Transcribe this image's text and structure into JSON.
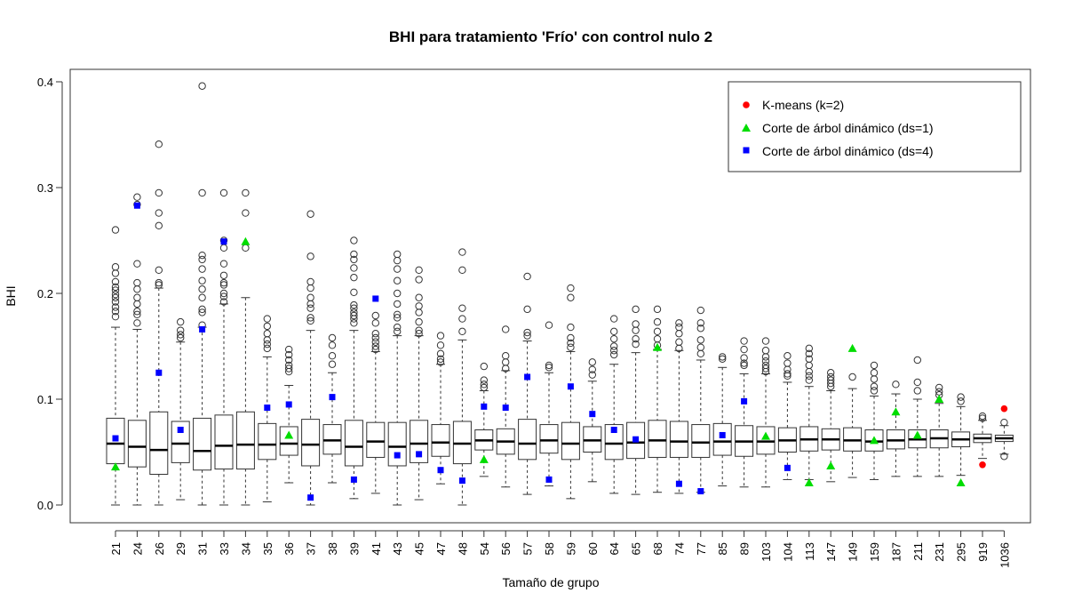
{
  "chart_data": {
    "type": "boxplot",
    "title": "BHI para tratamiento 'Frío' con control nulo 2",
    "xlabel": "Tamaño de grupo",
    "ylabel": "BHI",
    "ylim": [
      -0.02,
      0.41
    ],
    "yticks": [
      "0.0",
      "0.1",
      "0.2",
      "0.3",
      "0.4"
    ],
    "ytick_values": [
      0.0,
      0.1,
      0.2,
      0.3,
      0.4
    ],
    "categories": [
      "21",
      "24",
      "26",
      "29",
      "31",
      "33",
      "34",
      "35",
      "36",
      "37",
      "38",
      "39",
      "41",
      "43",
      "45",
      "47",
      "48",
      "54",
      "56",
      "57",
      "58",
      "59",
      "60",
      "64",
      "65",
      "68",
      "74",
      "77",
      "85",
      "89",
      "103",
      "104",
      "113",
      "147",
      "149",
      "159",
      "187",
      "211",
      "231",
      "295",
      "919",
      "1036"
    ],
    "boxes": [
      {
        "min": 0.0,
        "q1": 0.039,
        "median": 0.058,
        "q3": 0.082,
        "max": 0.168,
        "outliers": [
          0.178,
          0.183,
          0.187,
          0.192,
          0.196,
          0.199,
          0.203,
          0.206,
          0.211,
          0.219,
          0.225,
          0.26
        ]
      },
      {
        "min": 0.0,
        "q1": 0.036,
        "median": 0.055,
        "q3": 0.08,
        "max": 0.166,
        "outliers": [
          0.172,
          0.18,
          0.183,
          0.19,
          0.196,
          0.204,
          0.21,
          0.228,
          0.284,
          0.291
        ]
      },
      {
        "min": 0.0,
        "q1": 0.029,
        "median": 0.052,
        "q3": 0.088,
        "max": 0.205,
        "outliers": [
          0.208,
          0.21,
          0.222,
          0.264,
          0.276,
          0.295,
          0.341
        ]
      },
      {
        "min": 0.005,
        "q1": 0.04,
        "median": 0.058,
        "q3": 0.079,
        "max": 0.154,
        "outliers": [
          0.158,
          0.161,
          0.165,
          0.173
        ]
      },
      {
        "min": 0.0,
        "q1": 0.033,
        "median": 0.051,
        "q3": 0.082,
        "max": 0.168,
        "outliers": [
          0.17,
          0.182,
          0.185,
          0.196,
          0.204,
          0.212,
          0.223,
          0.232,
          0.236,
          0.295,
          0.396
        ]
      },
      {
        "min": 0.0,
        "q1": 0.034,
        "median": 0.056,
        "q3": 0.085,
        "max": 0.19,
        "outliers": [
          0.192,
          0.197,
          0.2,
          0.208,
          0.21,
          0.217,
          0.228,
          0.243,
          0.25,
          0.295
        ]
      },
      {
        "min": 0.0,
        "q1": 0.034,
        "median": 0.057,
        "q3": 0.088,
        "max": 0.196,
        "outliers": [
          0.243,
          0.276,
          0.295
        ]
      },
      {
        "min": 0.003,
        "q1": 0.043,
        "median": 0.057,
        "q3": 0.077,
        "max": 0.14,
        "outliers": [
          0.148,
          0.152,
          0.156,
          0.162,
          0.169,
          0.176
        ]
      },
      {
        "min": 0.021,
        "q1": 0.047,
        "median": 0.058,
        "q3": 0.074,
        "max": 0.113,
        "outliers": [
          0.126,
          0.129,
          0.132,
          0.137,
          0.142,
          0.147
        ]
      },
      {
        "min": 0.0,
        "q1": 0.037,
        "median": 0.057,
        "q3": 0.081,
        "max": 0.165,
        "outliers": [
          0.174,
          0.177,
          0.186,
          0.19,
          0.196,
          0.205,
          0.211,
          0.235,
          0.275
        ]
      },
      {
        "min": 0.021,
        "q1": 0.048,
        "median": 0.061,
        "q3": 0.076,
        "max": 0.125,
        "outliers": [
          0.133,
          0.141,
          0.151,
          0.158
        ]
      },
      {
        "min": 0.006,
        "q1": 0.037,
        "median": 0.055,
        "q3": 0.08,
        "max": 0.165,
        "outliers": [
          0.172,
          0.176,
          0.179,
          0.182,
          0.186,
          0.189,
          0.201,
          0.215,
          0.224,
          0.232,
          0.237,
          0.25
        ]
      },
      {
        "min": 0.011,
        "q1": 0.045,
        "median": 0.06,
        "q3": 0.078,
        "max": 0.145,
        "outliers": [
          0.147,
          0.15,
          0.154,
          0.158,
          0.162,
          0.172,
          0.179
        ]
      },
      {
        "min": 0.0,
        "q1": 0.037,
        "median": 0.055,
        "q3": 0.078,
        "max": 0.16,
        "outliers": [
          0.164,
          0.168,
          0.177,
          0.18,
          0.19,
          0.2,
          0.212,
          0.223,
          0.231,
          0.237
        ]
      },
      {
        "min": 0.005,
        "q1": 0.04,
        "median": 0.058,
        "q3": 0.08,
        "max": 0.16,
        "outliers": [
          0.162,
          0.165,
          0.173,
          0.182,
          0.188,
          0.196,
          0.213,
          0.222
        ]
      },
      {
        "min": 0.02,
        "q1": 0.046,
        "median": 0.059,
        "q3": 0.076,
        "max": 0.133,
        "outliers": [
          0.135,
          0.138,
          0.143,
          0.151,
          0.16
        ]
      },
      {
        "min": 0.0,
        "q1": 0.039,
        "median": 0.058,
        "q3": 0.079,
        "max": 0.156,
        "outliers": [
          0.164,
          0.176,
          0.186,
          0.222,
          0.239
        ]
      },
      {
        "min": 0.027,
        "q1": 0.052,
        "median": 0.061,
        "q3": 0.071,
        "max": 0.108,
        "outliers": [
          0.111,
          0.114,
          0.118,
          0.131
        ]
      },
      {
        "min": 0.017,
        "q1": 0.048,
        "median": 0.06,
        "q3": 0.072,
        "max": 0.127,
        "outliers": [
          0.129,
          0.135,
          0.141,
          0.166
        ]
      },
      {
        "min": 0.01,
        "q1": 0.043,
        "median": 0.058,
        "q3": 0.081,
        "max": 0.155,
        "outliers": [
          0.16,
          0.163,
          0.185,
          0.216
        ]
      },
      {
        "min": 0.018,
        "q1": 0.049,
        "median": 0.061,
        "q3": 0.076,
        "max": 0.125,
        "outliers": [
          0.13,
          0.132,
          0.17
        ]
      },
      {
        "min": 0.006,
        "q1": 0.043,
        "median": 0.058,
        "q3": 0.078,
        "max": 0.145,
        "outliers": [
          0.149,
          0.153,
          0.158,
          0.168,
          0.196,
          0.205
        ]
      },
      {
        "min": 0.022,
        "q1": 0.05,
        "median": 0.061,
        "q3": 0.074,
        "max": 0.117,
        "outliers": [
          0.123,
          0.128,
          0.135
        ]
      },
      {
        "min": 0.011,
        "q1": 0.043,
        "median": 0.058,
        "q3": 0.076,
        "max": 0.133,
        "outliers": [
          0.142,
          0.146,
          0.15,
          0.157,
          0.164,
          0.176
        ]
      },
      {
        "min": 0.01,
        "q1": 0.044,
        "median": 0.059,
        "q3": 0.078,
        "max": 0.144,
        "outliers": [
          0.152,
          0.157,
          0.165,
          0.171,
          0.185
        ]
      },
      {
        "min": 0.012,
        "q1": 0.045,
        "median": 0.061,
        "q3": 0.08,
        "max": 0.147,
        "outliers": [
          0.151,
          0.157,
          0.164,
          0.173,
          0.185
        ]
      },
      {
        "min": 0.011,
        "q1": 0.045,
        "median": 0.06,
        "q3": 0.079,
        "max": 0.146,
        "outliers": [
          0.148,
          0.154,
          0.162,
          0.168,
          0.172
        ]
      },
      {
        "min": 0.012,
        "q1": 0.045,
        "median": 0.059,
        "q3": 0.076,
        "max": 0.137,
        "outliers": [
          0.143,
          0.149,
          0.156,
          0.167,
          0.172,
          0.184
        ]
      },
      {
        "min": 0.018,
        "q1": 0.047,
        "median": 0.06,
        "q3": 0.077,
        "max": 0.13,
        "outliers": [
          0.138,
          0.14
        ]
      },
      {
        "min": 0.017,
        "q1": 0.046,
        "median": 0.06,
        "q3": 0.075,
        "max": 0.124,
        "outliers": [
          0.132,
          0.134,
          0.139,
          0.147,
          0.155
        ]
      },
      {
        "min": 0.017,
        "q1": 0.048,
        "median": 0.06,
        "q3": 0.074,
        "max": 0.124,
        "outliers": [
          0.126,
          0.129,
          0.132,
          0.136,
          0.14,
          0.146,
          0.155
        ]
      },
      {
        "min": 0.024,
        "q1": 0.05,
        "median": 0.061,
        "q3": 0.073,
        "max": 0.116,
        "outliers": [
          0.122,
          0.124,
          0.128,
          0.134,
          0.141
        ]
      },
      {
        "min": 0.024,
        "q1": 0.051,
        "median": 0.062,
        "q3": 0.074,
        "max": 0.112,
        "outliers": [
          0.118,
          0.122,
          0.126,
          0.132,
          0.138,
          0.143,
          0.148
        ]
      },
      {
        "min": 0.022,
        "q1": 0.052,
        "median": 0.062,
        "q3": 0.072,
        "max": 0.108,
        "outliers": [
          0.112,
          0.115,
          0.118,
          0.121,
          0.125
        ]
      },
      {
        "min": 0.026,
        "q1": 0.051,
        "median": 0.061,
        "q3": 0.073,
        "max": 0.11,
        "outliers": [
          0.121
        ]
      },
      {
        "min": 0.024,
        "q1": 0.051,
        "median": 0.06,
        "q3": 0.071,
        "max": 0.103,
        "outliers": [
          0.108,
          0.112,
          0.119,
          0.125,
          0.132
        ]
      },
      {
        "min": 0.027,
        "q1": 0.053,
        "median": 0.061,
        "q3": 0.071,
        "max": 0.105,
        "outliers": [
          0.114
        ]
      },
      {
        "min": 0.027,
        "q1": 0.054,
        "median": 0.062,
        "q3": 0.071,
        "max": 0.1,
        "outliers": [
          0.108,
          0.116,
          0.137
        ]
      },
      {
        "min": 0.027,
        "q1": 0.054,
        "median": 0.063,
        "q3": 0.071,
        "max": 0.096,
        "outliers": [
          0.104,
          0.107,
          0.111
        ]
      },
      {
        "min": 0.028,
        "q1": 0.055,
        "median": 0.062,
        "q3": 0.069,
        "max": 0.093,
        "outliers": [
          0.098,
          0.102
        ]
      },
      {
        "min": 0.044,
        "q1": 0.059,
        "median": 0.063,
        "q3": 0.067,
        "max": 0.08,
        "outliers": [
          0.082,
          0.084
        ]
      },
      {
        "min": 0.048,
        "q1": 0.06,
        "median": 0.063,
        "q3": 0.066,
        "max": 0.075,
        "outliers": [
          0.046,
          0.078
        ]
      }
    ],
    "overlay_series": [
      {
        "name": "K-means (k=2)",
        "marker": "circle",
        "color": "#ff0000",
        "points": [
          {
            "category": "919",
            "y": 0.038
          },
          {
            "category": "1036",
            "y": 0.091
          }
        ]
      },
      {
        "name": "Corte de árbol dinámico (ds=1)",
        "marker": "triangle",
        "color": "#00dd00",
        "points": [
          {
            "category": "21",
            "y": 0.036
          },
          {
            "category": "34",
            "y": 0.249
          },
          {
            "category": "36",
            "y": 0.066
          },
          {
            "category": "54",
            "y": 0.043
          },
          {
            "category": "68",
            "y": 0.149
          },
          {
            "category": "103",
            "y": 0.065
          },
          {
            "category": "113",
            "y": 0.021
          },
          {
            "category": "147",
            "y": 0.037
          },
          {
            "category": "149",
            "y": 0.148
          },
          {
            "category": "159",
            "y": 0.061
          },
          {
            "category": "187",
            "y": 0.088
          },
          {
            "category": "211",
            "y": 0.066
          },
          {
            "category": "231",
            "y": 0.1
          },
          {
            "category": "295",
            "y": 0.021
          }
        ]
      },
      {
        "name": "Corte de árbol dinámico (ds=4)",
        "marker": "square",
        "color": "#0000ff",
        "points": [
          {
            "category": "21",
            "y": 0.063
          },
          {
            "category": "24",
            "y": 0.283
          },
          {
            "category": "26",
            "y": 0.125
          },
          {
            "category": "29",
            "y": 0.071
          },
          {
            "category": "31",
            "y": 0.166
          },
          {
            "category": "33",
            "y": 0.249
          },
          {
            "category": "35",
            "y": 0.092
          },
          {
            "category": "36",
            "y": 0.095
          },
          {
            "category": "37",
            "y": 0.007
          },
          {
            "category": "38",
            "y": 0.102
          },
          {
            "category": "39",
            "y": 0.024
          },
          {
            "category": "41",
            "y": 0.195
          },
          {
            "category": "43",
            "y": 0.047
          },
          {
            "category": "45",
            "y": 0.048
          },
          {
            "category": "47",
            "y": 0.033
          },
          {
            "category": "48",
            "y": 0.023
          },
          {
            "category": "54",
            "y": 0.093
          },
          {
            "category": "56",
            "y": 0.092
          },
          {
            "category": "57",
            "y": 0.121
          },
          {
            "category": "58",
            "y": 0.024
          },
          {
            "category": "59",
            "y": 0.112
          },
          {
            "category": "60",
            "y": 0.086
          },
          {
            "category": "64",
            "y": 0.071
          },
          {
            "category": "65",
            "y": 0.062
          },
          {
            "category": "74",
            "y": 0.02
          },
          {
            "category": "77",
            "y": 0.013
          },
          {
            "category": "85",
            "y": 0.066
          },
          {
            "category": "89",
            "y": 0.098
          },
          {
            "category": "104",
            "y": 0.035
          }
        ]
      }
    ],
    "legend": {
      "placement": "top-right",
      "entries": [
        "K-means (k=2)",
        "Corte de árbol dinámico (ds=1)",
        "Corte de árbol dinámico (ds=4)"
      ]
    },
    "grid": false
  }
}
